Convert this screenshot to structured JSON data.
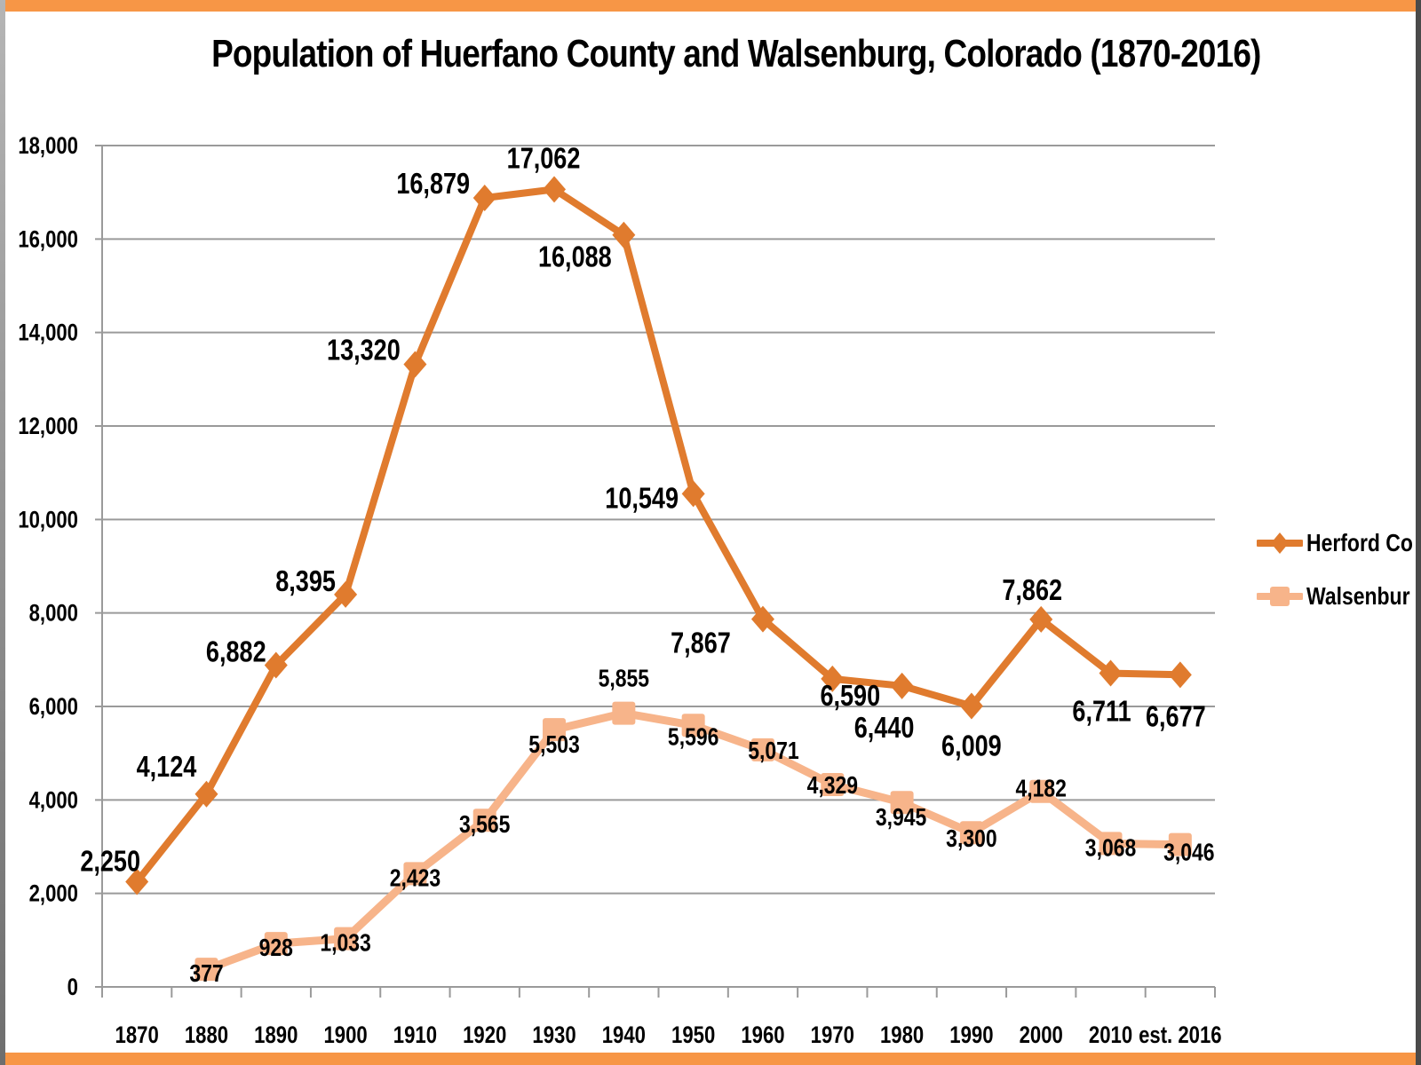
{
  "chart_data": {
    "type": "line",
    "title": "Population of Huerfano County and Walsenburg, Colorado (1870-2016)",
    "xlabel": "",
    "ylabel": "",
    "categories": [
      "1870",
      "1880",
      "1890",
      "1900",
      "1910",
      "1920",
      "1930",
      "1940",
      "1950",
      "1960",
      "1970",
      "1980",
      "1990",
      "2000",
      "2010",
      "est. 2016"
    ],
    "ylim": [
      0,
      18000
    ],
    "yticks": [
      0,
      2000,
      4000,
      6000,
      8000,
      10000,
      12000,
      14000,
      16000,
      18000
    ],
    "ytick_labels": [
      "0",
      "2,000",
      "4,000",
      "6,000",
      "8,000",
      "10,000",
      "12,000",
      "14,000",
      "16,000",
      "18,000"
    ],
    "grid": true,
    "legend_position": "right",
    "series": [
      {
        "name": "Herford County",
        "legend_label": "Herford Co",
        "color": "#e07b2e",
        "marker": "diamond",
        "values": [
          2250,
          4124,
          6882,
          8395,
          13320,
          16879,
          17062,
          16088,
          10549,
          7867,
          6590,
          6440,
          6009,
          7862,
          6711,
          6677
        ],
        "labels": [
          "2,250",
          "4,124",
          "6,882",
          "8,395",
          "13,320",
          "16,879",
          "17,062",
          "16,088",
          "10,549",
          "7,867",
          "6,590",
          "6,440",
          "6,009",
          "7,862",
          "6,711",
          "6,677"
        ]
      },
      {
        "name": "Walsenburg",
        "legend_label": "Walsenbur",
        "color": "#f7b48a",
        "marker": "square",
        "values": [
          null,
          377,
          928,
          1033,
          2423,
          3565,
          5503,
          5855,
          5596,
          5071,
          4329,
          3945,
          3300,
          4182,
          3068,
          3046
        ],
        "labels": [
          null,
          "377",
          "928",
          "1,033",
          "2,423",
          "3,565",
          "5,503",
          "5,855",
          "5,596",
          "5,071",
          "4,329",
          "3,945",
          "3,300",
          "4,182",
          "3,068",
          "3,046"
        ]
      }
    ]
  },
  "colors": {
    "frame_accent": "#f79646",
    "gridline": "#9a9a9a"
  }
}
